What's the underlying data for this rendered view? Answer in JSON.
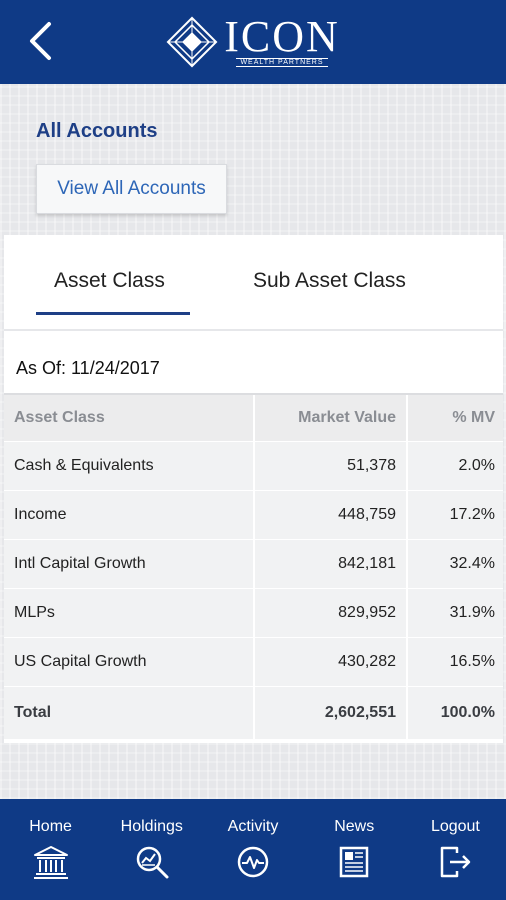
{
  "header": {
    "back_icon": "chevron-left-icon",
    "logo_word": "ICON",
    "logo_sub": "WEALTH PARTNERS",
    "background": "#0f3a86"
  },
  "accounts": {
    "title": "All Accounts",
    "view_all_label": "View All Accounts"
  },
  "tabs": [
    {
      "label": "Asset Class",
      "active": true
    },
    {
      "label": "Sub Asset Class",
      "active": false
    }
  ],
  "as_of": "As Of: 11/24/2017",
  "table": {
    "columns": [
      "Asset Class",
      "Market Value",
      "% MV"
    ],
    "rows": [
      [
        "Cash & Equivalents",
        "51,378",
        "2.0%"
      ],
      [
        "Income",
        "448,759",
        "17.2%"
      ],
      [
        "Intl Capital Growth",
        "842,181",
        "32.4%"
      ],
      [
        "MLPs",
        "829,952",
        "31.9%"
      ],
      [
        "US Capital Growth",
        "430,282",
        "16.5%"
      ]
    ],
    "total": [
      "Total",
      "2,602,551",
      "100.0%"
    ]
  },
  "nav": [
    {
      "label": "Home",
      "icon": "bank-icon"
    },
    {
      "label": "Holdings",
      "icon": "magnifier-chart-icon"
    },
    {
      "label": "Activity",
      "icon": "pulse-icon"
    },
    {
      "label": "News",
      "icon": "newspaper-icon"
    },
    {
      "label": "Logout",
      "icon": "logout-icon"
    }
  ]
}
